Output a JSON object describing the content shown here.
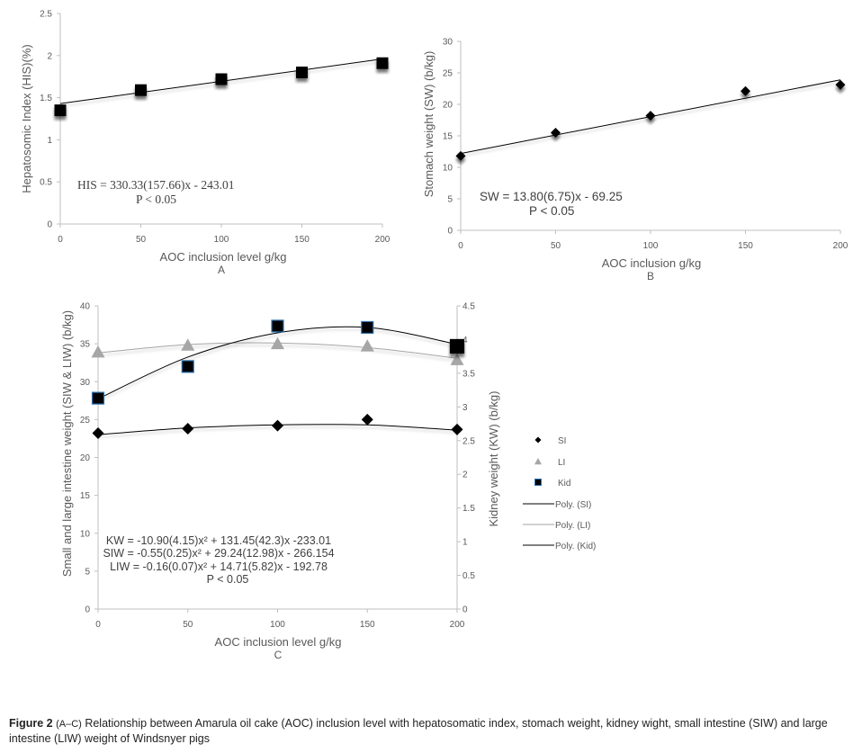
{
  "chart_data": [
    {
      "id": "A",
      "type": "scatter",
      "panel_label": "A",
      "xlabel": "AOC inclusion level g/kg",
      "ylabel": "Hepatosomic Index (HIS)(%)",
      "x": [
        0,
        50,
        100,
        150,
        200
      ],
      "xticks": [
        "0",
        "50",
        "100",
        "150",
        "200"
      ],
      "xlim": [
        0,
        200
      ],
      "ylim": [
        0,
        2.5
      ],
      "yticks": [
        "0",
        "0.5",
        "1",
        "1.5",
        "2",
        "2.5"
      ],
      "series": [
        {
          "name": "HIS",
          "marker": "square",
          "values": [
            1.35,
            1.59,
            1.72,
            1.8,
            1.91
          ]
        }
      ],
      "trendline": {
        "type": "linear",
        "start": 1.43,
        "end": 1.96
      },
      "annotations": [
        "HIS = 330.33(157.66)x - 243.01",
        "P < 0.05"
      ],
      "grid": false
    },
    {
      "id": "B",
      "type": "scatter",
      "panel_label": "B",
      "xlabel": "AOC inclusion g/kg",
      "ylabel": "Stomach weight (SW) (b/kg)",
      "x": [
        0,
        50,
        100,
        150,
        200
      ],
      "xticks": [
        "0",
        "50",
        "100",
        "150",
        "200"
      ],
      "xlim": [
        0,
        200
      ],
      "ylim": [
        0,
        30
      ],
      "yticks": [
        "0",
        "5",
        "10",
        "15",
        "20",
        "25",
        "30"
      ],
      "series": [
        {
          "name": "SW",
          "marker": "diamond",
          "values": [
            11.8,
            15.5,
            18.2,
            22.1,
            23.1
          ]
        }
      ],
      "trendline": {
        "type": "linear",
        "start": 12.2,
        "end": 23.9
      },
      "annotations": [
        "SW = 13.80(6.75)x - 69.25",
        "P < 0.05"
      ],
      "grid": false
    },
    {
      "id": "C",
      "type": "scatter",
      "panel_label": "C",
      "xlabel": "AOC inclusion level g/kg",
      "ylabel": "Small and large intestine weight (SIW & LIW) (b/kg)",
      "y2label": "Kidney weight (KW)  (b/kg)",
      "x": [
        0,
        50,
        100,
        150,
        200
      ],
      "xticks": [
        "0",
        "50",
        "100",
        "150",
        "200"
      ],
      "xlim": [
        0,
        200
      ],
      "ylim": [
        0,
        40
      ],
      "yticks": [
        "0",
        "5",
        "10",
        "15",
        "20",
        "25",
        "30",
        "35",
        "40"
      ],
      "y2lim": [
        0,
        4.5
      ],
      "y2ticks": [
        "0",
        "0.5",
        "1",
        "1.5",
        "2",
        "2.5",
        "3",
        "3.5",
        "4",
        "4.5"
      ],
      "series": [
        {
          "name": "SI",
          "marker": "diamond",
          "axis": "left",
          "color": "#000000",
          "values": [
            23.2,
            23.8,
            24.2,
            25.0,
            23.7
          ],
          "trend": {
            "name": "Poly. (SI)",
            "color": "#000000",
            "values": [
              23.0,
              23.9,
              24.3,
              24.3,
              23.6
            ]
          }
        },
        {
          "name": "LI",
          "marker": "triangle",
          "axis": "left",
          "color": "#a6a6a6",
          "values": [
            33.9,
            34.8,
            35.0,
            34.7,
            32.9
          ],
          "trend": {
            "name": "Poly. (LI)",
            "color": "#a6a6a6",
            "values": [
              33.8,
              34.9,
              35.1,
              34.5,
              33.1
            ]
          }
        },
        {
          "name": "Kid",
          "marker": "square",
          "axis": "right",
          "color": "#000000",
          "values": [
            3.13,
            3.6,
            4.2,
            4.18,
            3.9
          ],
          "trend": {
            "name": "Poly. (Kid)",
            "color": "#000000",
            "values": [
              3.12,
              3.74,
              4.1,
              4.18,
              3.93
            ]
          }
        }
      ],
      "legend": {
        "position": "right",
        "entries": [
          "SI",
          "LI",
          "Kid",
          "Poly. (SI)",
          "Poly. (LI)",
          "Poly. (Kid)"
        ]
      },
      "annotations": [
        "KW = -10.90(4.15)x² + 131.45(42.3)x -233.01",
        "SIW  = -0.55(0.25)x² + 29.24(12.98)x - 266.154",
        "LIW = -0.16(0.07)x² + 14.71(5.82)x - 192.78",
        "P < 0.05"
      ],
      "grid": false
    }
  ],
  "caption": {
    "label": "Figure 2",
    "range": "(A–C)",
    "text": " Relationship between Amarula oil cake (AOC) inclusion level with hepatosomatic index, stomach weight, kidney wight, small intestine (SIW) and large intestine (LIW) weight of Windsnyer pigs"
  }
}
